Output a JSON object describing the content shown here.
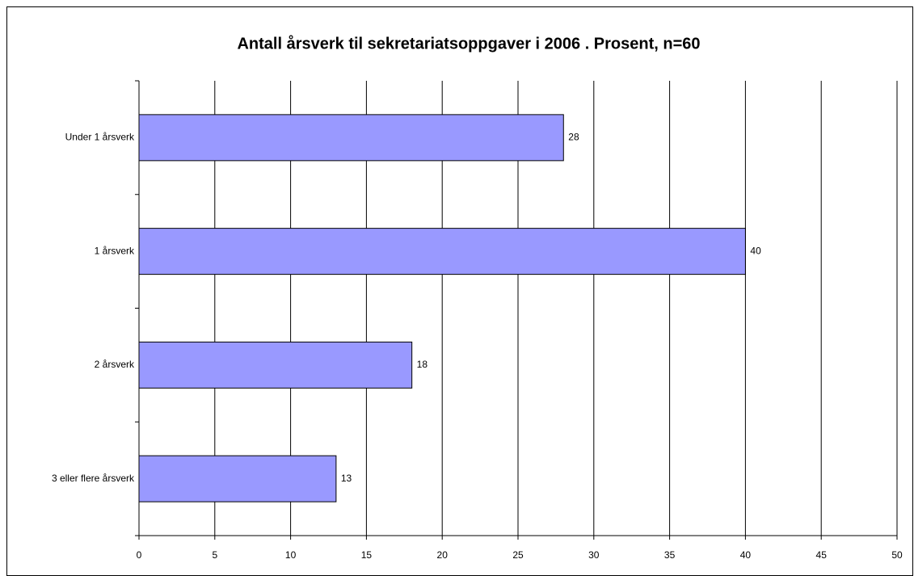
{
  "chart_data": {
    "type": "barh",
    "title": "Antall årsverk til sekretariatsoppgaver i 2006 . Prosent, n=60",
    "categories": [
      "Under 1 årsverk",
      "1 årsverk",
      "2 årsverk",
      "3 eller flere årsverk"
    ],
    "values": [
      28,
      40,
      18,
      13
    ],
    "color": "#9999ff",
    "xlim": [
      0,
      50
    ],
    "xticks": [
      0,
      5,
      10,
      15,
      20,
      25,
      30,
      35,
      40,
      45,
      50
    ],
    "grid": true
  }
}
